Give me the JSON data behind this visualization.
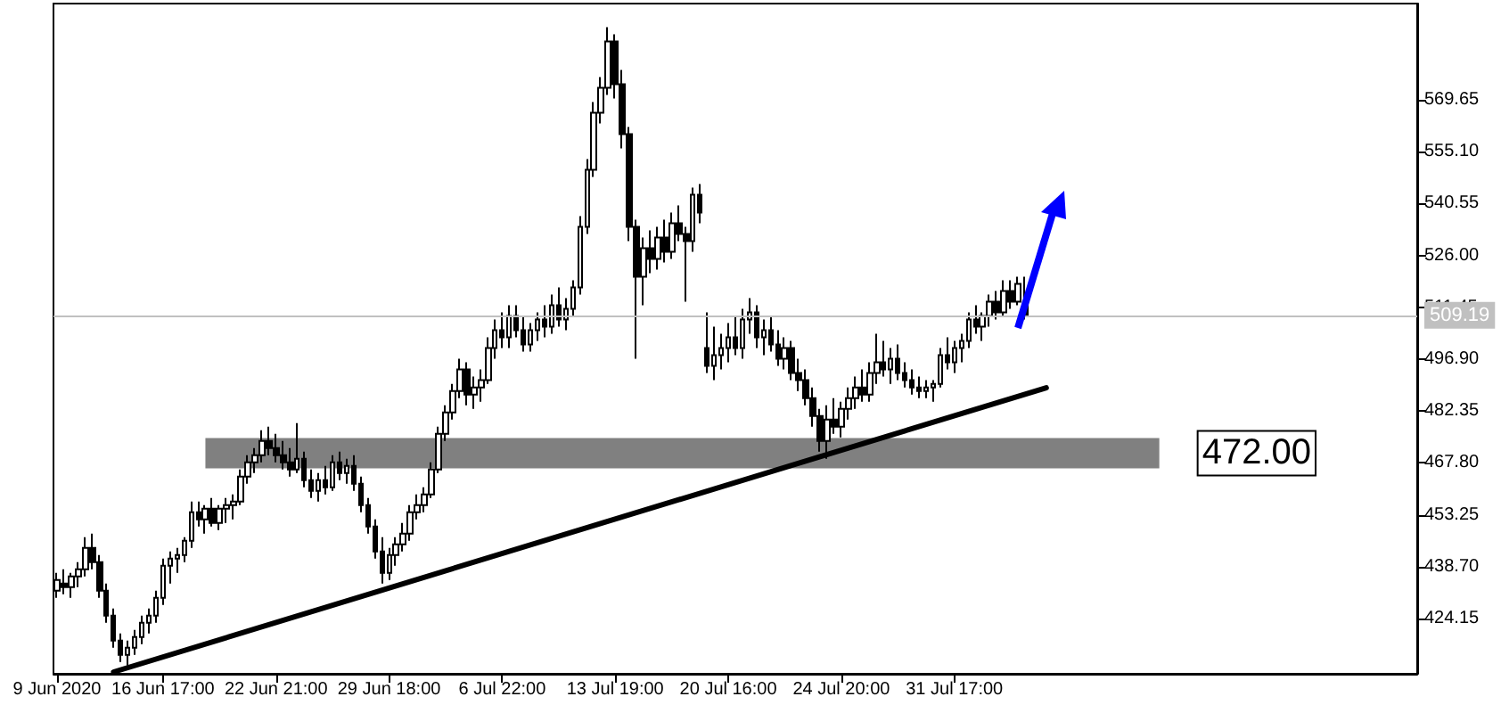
{
  "chart_data": {
    "type": "candlestick",
    "categories": [
      "9 Jun 2020",
      null,
      null,
      null,
      null,
      null,
      null,
      null,
      null,
      null,
      null,
      null,
      null,
      null,
      null,
      "16 Jun 17:00",
      null,
      null,
      null,
      null,
      null,
      null,
      null,
      null,
      null,
      null,
      null,
      null,
      null,
      null,
      null,
      "22 Jun 21:00",
      null,
      null,
      null,
      null,
      null,
      null,
      null,
      null,
      null,
      null,
      null,
      null,
      null,
      null,
      null,
      "29 Jun 18:00",
      null,
      null,
      null,
      null,
      null,
      null,
      null,
      null,
      null,
      null,
      null,
      null,
      null,
      null,
      null,
      "6 Jul 22:00",
      null,
      null,
      null,
      null,
      null,
      null,
      null,
      null,
      null,
      null,
      null,
      null,
      null,
      null,
      null,
      "13 Jul 19:00",
      null,
      null,
      null,
      null,
      null,
      null,
      null,
      null,
      null,
      null,
      null,
      null,
      null,
      null,
      null,
      "20 Jul 16:00",
      null,
      null,
      null,
      null,
      null,
      null,
      null,
      null,
      null,
      null,
      null,
      null,
      null,
      null,
      null,
      "24 Jul 20:00",
      null,
      null,
      null,
      null,
      null,
      null,
      null,
      null,
      null,
      null,
      null,
      null,
      null,
      null,
      null,
      "31 Jul 17:00",
      null,
      null,
      null,
      null,
      null,
      null,
      null,
      null,
      null,
      null,
      null,
      null,
      null,
      null,
      null,
      null,
      null,
      null,
      null,
      null,
      null,
      null,
      null,
      null,
      null,
      null,
      null,
      null,
      null,
      null,
      null,
      null,
      null,
      null,
      null,
      null,
      null,
      null,
      null,
      null,
      null,
      null,
      null,
      null,
      null,
      null,
      null,
      null,
      null,
      null,
      null,
      null,
      null,
      null,
      null,
      null,
      null,
      null,
      null,
      null,
      null,
      null,
      null,
      null,
      null
    ],
    "series": [
      {
        "type": "candlestick",
        "color": "#000000",
        "ohlc": [
          [
            432,
            437,
            430,
            435
          ],
          [
            434,
            438,
            431,
            433
          ],
          [
            433,
            437,
            430,
            436
          ],
          [
            436,
            440,
            433,
            438
          ],
          [
            438,
            447,
            436,
            444
          ],
          [
            444,
            448,
            438,
            440
          ],
          [
            440,
            442,
            430,
            432
          ],
          [
            432,
            434,
            423,
            425
          ],
          [
            425,
            427,
            416,
            418
          ],
          [
            418,
            420,
            412,
            414
          ],
          [
            414,
            418,
            411,
            416
          ],
          [
            416,
            421,
            414,
            419
          ],
          [
            419,
            425,
            417,
            423
          ],
          [
            423,
            427,
            420,
            425
          ],
          [
            425,
            432,
            423,
            430
          ],
          [
            430,
            441,
            428,
            439
          ],
          [
            439,
            443,
            434,
            441
          ],
          [
            441,
            444,
            437,
            442
          ],
          [
            442,
            447,
            440,
            446
          ],
          [
            446,
            457,
            444,
            454
          ],
          [
            454,
            457,
            450,
            452
          ],
          [
            452,
            456,
            448,
            455
          ],
          [
            455,
            458,
            450,
            451
          ],
          [
            451,
            456,
            449,
            455
          ],
          [
            455,
            458,
            451,
            456
          ],
          [
            456,
            459,
            452,
            457
          ],
          [
            457,
            466,
            456,
            464
          ],
          [
            464,
            470,
            462,
            468
          ],
          [
            468,
            472,
            465,
            470
          ],
          [
            470,
            477,
            468,
            474
          ],
          [
            474,
            478,
            470,
            472
          ],
          [
            472,
            476,
            468,
            470
          ],
          [
            470,
            474,
            466,
            468
          ],
          [
            468,
            472,
            464,
            466
          ],
          [
            466,
            479,
            465,
            469
          ],
          [
            469,
            471,
            461,
            463
          ],
          [
            463,
            466,
            458,
            460
          ],
          [
            460,
            465,
            457,
            463
          ],
          [
            463,
            467,
            459,
            461
          ],
          [
            461,
            470,
            460,
            468
          ],
          [
            468,
            471,
            463,
            465
          ],
          [
            465,
            469,
            462,
            467
          ],
          [
            467,
            470,
            460,
            462
          ],
          [
            462,
            464,
            454,
            456
          ],
          [
            456,
            458,
            448,
            450
          ],
          [
            450,
            452,
            441,
            443
          ],
          [
            443,
            447,
            434,
            437
          ],
          [
            437,
            444,
            435,
            442
          ],
          [
            442,
            447,
            439,
            445
          ],
          [
            445,
            451,
            443,
            448
          ],
          [
            448,
            456,
            446,
            454
          ],
          [
            454,
            459,
            452,
            456
          ],
          [
            456,
            461,
            454,
            459
          ],
          [
            459,
            468,
            458,
            466
          ],
          [
            466,
            478,
            465,
            476
          ],
          [
            476,
            484,
            474,
            482
          ],
          [
            482,
            490,
            480,
            488
          ],
          [
            488,
            497,
            486,
            494
          ],
          [
            494,
            496,
            484,
            487
          ],
          [
            487,
            492,
            483,
            489
          ],
          [
            489,
            494,
            485,
            491
          ],
          [
            491,
            503,
            490,
            500
          ],
          [
            500,
            508,
            497,
            505
          ],
          [
            505,
            510,
            500,
            503
          ],
          [
            503,
            512,
            500,
            509
          ],
          [
            509,
            512,
            503,
            505
          ],
          [
            505,
            509,
            499,
            501
          ],
          [
            501,
            507,
            499,
            505
          ],
          [
            505,
            510,
            502,
            508
          ],
          [
            508,
            512,
            503,
            506
          ],
          [
            506,
            515,
            504,
            512
          ],
          [
            512,
            517,
            506,
            508
          ],
          [
            508,
            514,
            505,
            511
          ],
          [
            511,
            519,
            509,
            517
          ],
          [
            517,
            537,
            515,
            534
          ],
          [
            534,
            553,
            532,
            550
          ],
          [
            550,
            569,
            548,
            566
          ],
          [
            566,
            576,
            563,
            573
          ],
          [
            573,
            590,
            571,
            586
          ],
          [
            586,
            588,
            570,
            574
          ],
          [
            574,
            578,
            556,
            560
          ],
          [
            560,
            562,
            530,
            534
          ],
          [
            534,
            536,
            497,
            520
          ],
          [
            520,
            531,
            512,
            528
          ],
          [
            528,
            533,
            521,
            525
          ],
          [
            525,
            534,
            522,
            531
          ],
          [
            531,
            536,
            524,
            527
          ],
          [
            527,
            538,
            525,
            535
          ],
          [
            535,
            540,
            530,
            532
          ],
          [
            532,
            534,
            513,
            530
          ],
          [
            530,
            545,
            527,
            543
          ],
          [
            543,
            546,
            535,
            538
          ],
          [
            500,
            510,
            493,
            495
          ],
          [
            495,
            506,
            491,
            498
          ],
          [
            498,
            504,
            494,
            500
          ],
          [
            500,
            507,
            496,
            503
          ],
          [
            503,
            509,
            498,
            500
          ],
          [
            500,
            511,
            497,
            508
          ],
          [
            508,
            514,
            504,
            510
          ],
          [
            510,
            512,
            500,
            503
          ],
          [
            503,
            508,
            498,
            505
          ],
          [
            505,
            509,
            499,
            501
          ],
          [
            501,
            505,
            495,
            497
          ],
          [
            497,
            503,
            494,
            500
          ],
          [
            500,
            502,
            491,
            493
          ],
          [
            493,
            497,
            488,
            491
          ],
          [
            491,
            494,
            484,
            486
          ],
          [
            486,
            489,
            478,
            481
          ],
          [
            481,
            483,
            471,
            474
          ],
          [
            474,
            484,
            469,
            480
          ],
          [
            480,
            486,
            476,
            478
          ],
          [
            478,
            485,
            475,
            483
          ],
          [
            483,
            489,
            480,
            486
          ],
          [
            486,
            492,
            483,
            489
          ],
          [
            489,
            494,
            485,
            487
          ],
          [
            487,
            496,
            485,
            493
          ],
          [
            493,
            504,
            490,
            496
          ],
          [
            496,
            502,
            492,
            494
          ],
          [
            494,
            500,
            490,
            497
          ],
          [
            497,
            501,
            491,
            493
          ],
          [
            493,
            496,
            489,
            491
          ],
          [
            491,
            494,
            487,
            489
          ],
          [
            489,
            492,
            486,
            488
          ],
          [
            488,
            491,
            486,
            489
          ],
          [
            489,
            491,
            485,
            490
          ],
          [
            490,
            500,
            489,
            498
          ],
          [
            498,
            503,
            494,
            496
          ],
          [
            496,
            502,
            493,
            500
          ],
          [
            500,
            504,
            496,
            502
          ],
          [
            502,
            510,
            500,
            508
          ],
          [
            508,
            512,
            504,
            506
          ],
          [
            506,
            510,
            502,
            509
          ],
          [
            509,
            515,
            506,
            513
          ],
          [
            513,
            516,
            508,
            510
          ],
          [
            510,
            519,
            509,
            516
          ],
          [
            516,
            519,
            511,
            513
          ],
          [
            513,
            520,
            512,
            518
          ],
          [
            512,
            520,
            508,
            509.19
          ],
          null,
          null,
          null,
          null,
          null,
          null,
          null,
          null,
          null,
          null,
          null,
          null,
          null,
          null,
          null,
          null,
          null,
          null,
          null,
          null,
          null,
          null,
          null,
          null,
          null,
          null,
          null,
          null,
          null,
          null,
          null,
          null,
          null,
          null,
          null,
          null,
          null,
          null,
          null,
          null,
          null,
          null,
          null,
          null,
          null,
          null,
          null,
          null,
          null,
          null,
          null,
          null,
          null,
          null,
          null
        ]
      },
      {
        "type": "line",
        "color": "#000000",
        "values": [
          null,
          null,
          null,
          null,
          null,
          null,
          null,
          null,
          409.2,
          null,
          null,
          null,
          null,
          null,
          null,
          null,
          null,
          null,
          null,
          null,
          null,
          null,
          null,
          null,
          null,
          null,
          null,
          null,
          null,
          null,
          null,
          null,
          null,
          null,
          null,
          null,
          null,
          null,
          null,
          null,
          null,
          null,
          null,
          null,
          null,
          null,
          null,
          null,
          null,
          null,
          null,
          null,
          null,
          null,
          null,
          null,
          null,
          null,
          null,
          null,
          null,
          null,
          null,
          null,
          null,
          null,
          null,
          null,
          null,
          null,
          null,
          null,
          null,
          null,
          null,
          null,
          null,
          null,
          null,
          null,
          null,
          null,
          null,
          null,
          null,
          null,
          null,
          null,
          null,
          null,
          null,
          null,
          null,
          null,
          null,
          null,
          null,
          null,
          null,
          null,
          null,
          null,
          null,
          null,
          null,
          null,
          null,
          null,
          null,
          null,
          null,
          null,
          null,
          null,
          null,
          null,
          null,
          null,
          null,
          null,
          null,
          null,
          null,
          null,
          null,
          null,
          null,
          null,
          null,
          null,
          null,
          null,
          null,
          null,
          null,
          null,
          null,
          null,
          null,
          null,
          488.9,
          null,
          null,
          null,
          null,
          null,
          null,
          null,
          null,
          null,
          null,
          null,
          null,
          null,
          null,
          null,
          null,
          null,
          null,
          null,
          null,
          null,
          null,
          null,
          null,
          null,
          null,
          null,
          null,
          null,
          null,
          null,
          null,
          null,
          null,
          null,
          null,
          null,
          null,
          null,
          null,
          null,
          null,
          null,
          null,
          null,
          null,
          null,
          null,
          null,
          null,
          null,
          null
        ]
      }
    ],
    "ylim": [
      408.7,
      596.6
    ],
    "yticks": [
      424.15,
      {
        "value": 438.7,
        "label": "438.70"
      },
      453.25,
      {
        "value": 467.8,
        "label": "467.80"
      },
      482.35,
      {
        "value": 496.9,
        "label": "496.90"
      },
      511.45,
      {
        "value": 526,
        "label": "526.00"
      },
      540.55,
      {
        "value": 555.1,
        "label": "555.10"
      },
      569.65
    ],
    "ref_lines": [
      {
        "axis": "y",
        "value": 509.19,
        "label": "509.19",
        "color": "#c0c0c0"
      }
    ],
    "bands": [
      {
        "axis": "y",
        "from": 466.3,
        "to": 474.8,
        "label": "472.00",
        "color": "#808080"
      }
    ],
    "grid": false
  }
}
